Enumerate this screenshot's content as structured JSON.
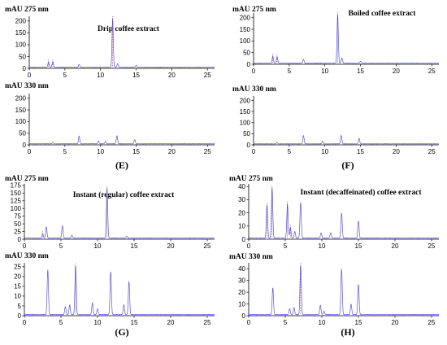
{
  "colors": {
    "trace": "#5a56d6",
    "axis": "#000000"
  },
  "panels": [
    {
      "letter": "E",
      "title": "Drip coffee extract",
      "plots": [
        {
          "ylabel": "mAU 275 nm",
          "ylim": [
            0,
            220
          ],
          "yticks": [
            "0",
            "50",
            "100",
            "150",
            "200"
          ]
        },
        {
          "ylabel": "mAU 330 nm",
          "ylim": [
            0,
            220
          ],
          "yticks": [
            "0",
            "50",
            "100",
            "150",
            "200"
          ]
        }
      ]
    },
    {
      "letter": "F",
      "title": "Boiled coffee extract",
      "plots": [
        {
          "ylabel": "mAU 275 nm",
          "ylim": [
            0,
            220
          ],
          "yticks": [
            "0",
            "50",
            "100",
            "150",
            "200"
          ]
        },
        {
          "ylabel": "mAU 330 nm",
          "ylim": [
            0,
            220
          ],
          "yticks": [
            "0",
            "50",
            "100",
            "150",
            "200"
          ]
        }
      ]
    },
    {
      "letter": "G",
      "title": "Instant (regular) coffee extract",
      "plots": [
        {
          "ylabel": "mAU 275 nm",
          "ylim": [
            0,
            180
          ],
          "yticks": [
            "0",
            "25",
            "50",
            "75",
            "100",
            "125",
            "150",
            "175"
          ]
        },
        {
          "ylabel": "mAU 330 nm",
          "ylim": [
            0,
            27
          ],
          "yticks": [
            "0",
            "5",
            "10",
            "15",
            "20",
            "25"
          ]
        }
      ]
    },
    {
      "letter": "H",
      "title": "Instant (decaffeinated) coffee extract",
      "plots": [
        {
          "ylabel": "mAU 275 nm",
          "ylim": [
            0,
            42
          ],
          "yticks": [
            "0",
            "10",
            "20",
            "30",
            "40"
          ]
        },
        {
          "ylabel": "mAU 330 nm",
          "ylim": [
            0,
            45
          ],
          "yticks": [
            "0",
            "10",
            "20",
            "30",
            "40"
          ]
        }
      ]
    }
  ],
  "chart_data": [
    {
      "type": "line",
      "panel": "E",
      "title": "Drip coffee extract",
      "ylabel": "mAU 275 nm",
      "xlim": [
        0,
        26
      ],
      "xticks": [
        0,
        5,
        10,
        15,
        20,
        25
      ],
      "ylim": [
        0,
        220
      ],
      "peaks": [
        [
          2.7,
          22
        ],
        [
          3.3,
          23
        ],
        [
          7.0,
          12
        ],
        [
          11.7,
          205
        ],
        [
          12.4,
          15
        ],
        [
          15.0,
          8
        ]
      ]
    },
    {
      "type": "line",
      "panel": "E",
      "title": "Drip coffee extract",
      "ylabel": "mAU 330 nm",
      "xlim": [
        0,
        26
      ],
      "xticks": [
        0,
        5,
        10,
        15,
        20,
        25
      ],
      "ylim": [
        0,
        220
      ],
      "peaks": [
        [
          3.3,
          6
        ],
        [
          7.0,
          33
        ],
        [
          9.7,
          12
        ],
        [
          10.7,
          10
        ],
        [
          12.3,
          35
        ],
        [
          14.8,
          18
        ]
      ]
    },
    {
      "type": "line",
      "panel": "F",
      "title": "Boiled coffee extract",
      "ylabel": "mAU 275 nm",
      "xlim": [
        0,
        26
      ],
      "xticks": [
        0,
        5,
        10,
        15,
        20,
        25
      ],
      "ylim": [
        0,
        220
      ],
      "peaks": [
        [
          2.7,
          30
        ],
        [
          3.3,
          27
        ],
        [
          7.0,
          17
        ],
        [
          11.8,
          210
        ],
        [
          12.4,
          22
        ],
        [
          15.0,
          9
        ]
      ]
    },
    {
      "type": "line",
      "panel": "F",
      "title": "Boiled coffee extract",
      "ylabel": "mAU 330 nm",
      "xlim": [
        0,
        26
      ],
      "xticks": [
        0,
        5,
        10,
        15,
        20,
        25
      ],
      "ylim": [
        0,
        220
      ],
      "peaks": [
        [
          3.3,
          5
        ],
        [
          7.0,
          38
        ],
        [
          9.7,
          12
        ],
        [
          12.3,
          38
        ],
        [
          14.8,
          25
        ]
      ]
    },
    {
      "type": "line",
      "panel": "G",
      "title": "Instant (regular) coffee extract",
      "ylabel": "mAU 275 nm",
      "xlim": [
        0,
        26
      ],
      "xticks": [
        0,
        5,
        10,
        15,
        20,
        25
      ],
      "ylim": [
        0,
        180
      ],
      "peaks": [
        [
          2.5,
          14
        ],
        [
          3.0,
          37
        ],
        [
          5.2,
          40
        ],
        [
          6.5,
          10
        ],
        [
          11.3,
          162
        ],
        [
          14.0,
          6
        ]
      ]
    },
    {
      "type": "line",
      "panel": "G",
      "title": "Instant (regular) coffee extract",
      "ylabel": "mAU 330 nm",
      "xlim": [
        0,
        26
      ],
      "xticks": [
        0,
        5,
        10,
        15,
        20,
        25
      ],
      "ylim": [
        0,
        27
      ],
      "peaks": [
        [
          3.2,
          23
        ],
        [
          5.6,
          4
        ],
        [
          6.2,
          5
        ],
        [
          7.0,
          25
        ],
        [
          9.3,
          6
        ],
        [
          10.0,
          3
        ],
        [
          11.8,
          22
        ],
        [
          13.6,
          5
        ],
        [
          14.3,
          17
        ]
      ]
    },
    {
      "type": "line",
      "panel": "H",
      "title": "Instant (decaffeinated) coffee extract",
      "ylabel": "mAU 275 nm",
      "xlim": [
        0,
        26
      ],
      "xticks": [
        0,
        5,
        10,
        15,
        20,
        25
      ],
      "ylim": [
        0,
        42
      ],
      "peaks": [
        [
          2.5,
          25
        ],
        [
          3.2,
          38
        ],
        [
          5.3,
          26
        ],
        [
          5.7,
          8
        ],
        [
          6.3,
          5
        ],
        [
          7.1,
          27
        ],
        [
          9.9,
          4
        ],
        [
          11.2,
          4
        ],
        [
          12.7,
          19
        ],
        [
          15.0,
          13
        ]
      ]
    },
    {
      "type": "line",
      "panel": "H",
      "title": "Instant (decaffeinated) coffee extract",
      "ylabel": "mAU 330 nm",
      "xlim": [
        0,
        26
      ],
      "xticks": [
        0,
        5,
        10,
        15,
        20,
        25
      ],
      "ylim": [
        0,
        45
      ],
      "peaks": [
        [
          3.3,
          23
        ],
        [
          5.6,
          5
        ],
        [
          6.2,
          6
        ],
        [
          7.1,
          42
        ],
        [
          9.8,
          8
        ],
        [
          10.3,
          3
        ],
        [
          12.7,
          39
        ],
        [
          14.0,
          9
        ],
        [
          15.0,
          26
        ]
      ]
    }
  ]
}
